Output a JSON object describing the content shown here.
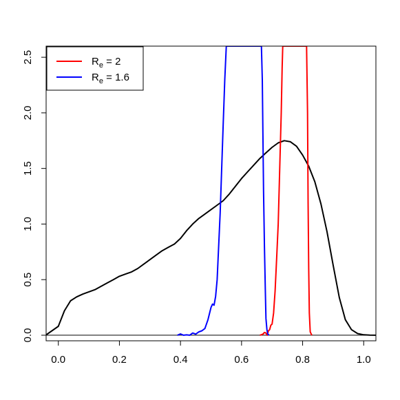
{
  "chart_data": {
    "type": "line",
    "title": "",
    "xlabel": "",
    "ylabel": "",
    "xlim": [
      -0.04,
      1.04
    ],
    "ylim": [
      -0.05,
      2.6
    ],
    "x_ticks": [
      {
        "value": 0.0,
        "label": "0.0"
      },
      {
        "value": 0.2,
        "label": "0.2"
      },
      {
        "value": 0.4,
        "label": "0.4"
      },
      {
        "value": 0.6,
        "label": "0.6"
      },
      {
        "value": 0.8,
        "label": "0.8"
      },
      {
        "value": 1.0,
        "label": "1.0"
      }
    ],
    "y_ticks": [
      {
        "value": 0.0,
        "label": "0.0"
      },
      {
        "value": 0.5,
        "label": "0.5"
      },
      {
        "value": 1.0,
        "label": "1.0"
      },
      {
        "value": 1.5,
        "label": "1.5"
      },
      {
        "value": 2.0,
        "label": "2.0"
      },
      {
        "value": 2.5,
        "label": "2.5"
      }
    ],
    "grid": false,
    "legend_position": "top-left",
    "baseline": 0,
    "series": [
      {
        "color": "#000000",
        "x": [
          -0.04,
          0.0,
          0.02,
          0.04,
          0.06,
          0.08,
          0.1,
          0.12,
          0.14,
          0.16,
          0.18,
          0.2,
          0.22,
          0.24,
          0.26,
          0.28,
          0.3,
          0.32,
          0.34,
          0.36,
          0.38,
          0.4,
          0.42,
          0.44,
          0.46,
          0.48,
          0.5,
          0.52,
          0.54,
          0.56,
          0.58,
          0.6,
          0.62,
          0.64,
          0.66,
          0.68,
          0.7,
          0.72,
          0.74,
          0.76,
          0.78,
          0.8,
          0.82,
          0.84,
          0.86,
          0.88,
          0.9,
          0.92,
          0.94,
          0.96,
          0.98,
          1.0,
          1.02,
          1.04
        ],
        "y": [
          0.003,
          0.08,
          0.22,
          0.31,
          0.345,
          0.37,
          0.39,
          0.41,
          0.44,
          0.47,
          0.5,
          0.53,
          0.55,
          0.57,
          0.6,
          0.64,
          0.68,
          0.72,
          0.76,
          0.79,
          0.82,
          0.87,
          0.94,
          1.0,
          1.05,
          1.09,
          1.13,
          1.17,
          1.21,
          1.27,
          1.34,
          1.41,
          1.47,
          1.53,
          1.59,
          1.64,
          1.69,
          1.73,
          1.75,
          1.74,
          1.7,
          1.62,
          1.52,
          1.38,
          1.18,
          0.93,
          0.63,
          0.34,
          0.14,
          0.05,
          0.015,
          0.004,
          0.001,
          0.0
        ]
      },
      {
        "name": "R_e = 2",
        "color": "#ff0000",
        "x": [
          0.66,
          0.67,
          0.675,
          0.68,
          0.684,
          0.688,
          0.692,
          0.696,
          0.7,
          0.705,
          0.71,
          0.715,
          0.72,
          0.725,
          0.73,
          0.733,
          0.735,
          0.737,
          0.81,
          0.813,
          0.816,
          0.818,
          0.82,
          0.822,
          0.825,
          0.83
        ],
        "y": [
          0.0,
          0.01,
          0.025,
          0.02,
          0.0,
          0.04,
          0.05,
          0.09,
          0.1,
          0.2,
          0.4,
          0.7,
          1.0,
          1.5,
          2.0,
          2.4,
          2.6,
          2.6,
          2.6,
          2.6,
          2.0,
          1.2,
          0.6,
          0.2,
          0.03,
          0.0
        ]
      },
      {
        "name": "R_e = 1.6",
        "color": "#0000ff",
        "x": [
          0.39,
          0.4,
          0.41,
          0.42,
          0.43,
          0.44,
          0.45,
          0.46,
          0.47,
          0.48,
          0.49,
          0.5,
          0.505,
          0.51,
          0.515,
          0.52,
          0.525,
          0.53,
          0.535,
          0.54,
          0.545,
          0.55,
          0.553,
          0.665,
          0.668,
          0.67,
          0.672,
          0.675,
          0.678,
          0.68,
          0.683,
          0.686,
          0.69
        ],
        "y": [
          0.0,
          0.012,
          0.0,
          0.003,
          0.0,
          0.02,
          0.01,
          0.03,
          0.04,
          0.06,
          0.14,
          0.25,
          0.28,
          0.27,
          0.35,
          0.5,
          0.8,
          1.1,
          1.5,
          1.9,
          2.3,
          2.6,
          2.6,
          2.6,
          2.3,
          1.8,
          1.3,
          0.8,
          0.4,
          0.15,
          0.05,
          0.01,
          0.0
        ]
      }
    ]
  },
  "legend": {
    "items": [
      {
        "prefix": "R",
        "sub": "e",
        "suffix": " = 2",
        "color": "#ff0000"
      },
      {
        "prefix": "R",
        "sub": "e",
        "suffix": " = 1.6",
        "color": "#0000ff"
      }
    ]
  }
}
